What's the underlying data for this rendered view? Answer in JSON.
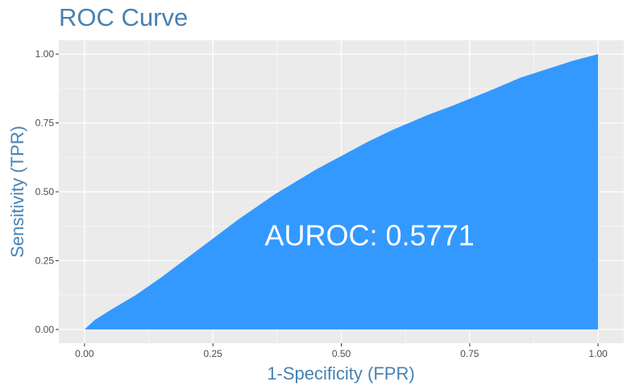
{
  "chart_data": {
    "type": "area",
    "title": "ROC Curve",
    "xlabel": "1-Specificity (FPR)",
    "ylabel": "Sensitivity (TPR)",
    "xlim": [
      -0.05,
      1.05
    ],
    "ylim": [
      -0.05,
      1.05
    ],
    "x_ticks": [
      "0.00",
      "0.25",
      "0.50",
      "0.75",
      "1.00"
    ],
    "y_ticks": [
      "0.00",
      "0.25",
      "0.50",
      "0.75",
      "1.00"
    ],
    "x": [
      0,
      0.02,
      0.05,
      0.1,
      0.15,
      0.2,
      0.25,
      0.3,
      0.37,
      0.45,
      0.5,
      0.55,
      0.6,
      0.67,
      0.72,
      0.78,
      0.85,
      0.9,
      0.95,
      1.0
    ],
    "y": [
      0,
      0.035,
      0.07,
      0.125,
      0.19,
      0.26,
      0.33,
      0.4,
      0.49,
      0.58,
      0.63,
      0.68,
      0.725,
      0.78,
      0.815,
      0.86,
      0.915,
      0.945,
      0.975,
      1.0
    ],
    "fill_color": "#3399ff",
    "panel_color": "#ebebeb",
    "grid": true,
    "annotation": "AUROC: 0.5771",
    "annotation_position": [
      0.555,
      0.34
    ]
  }
}
